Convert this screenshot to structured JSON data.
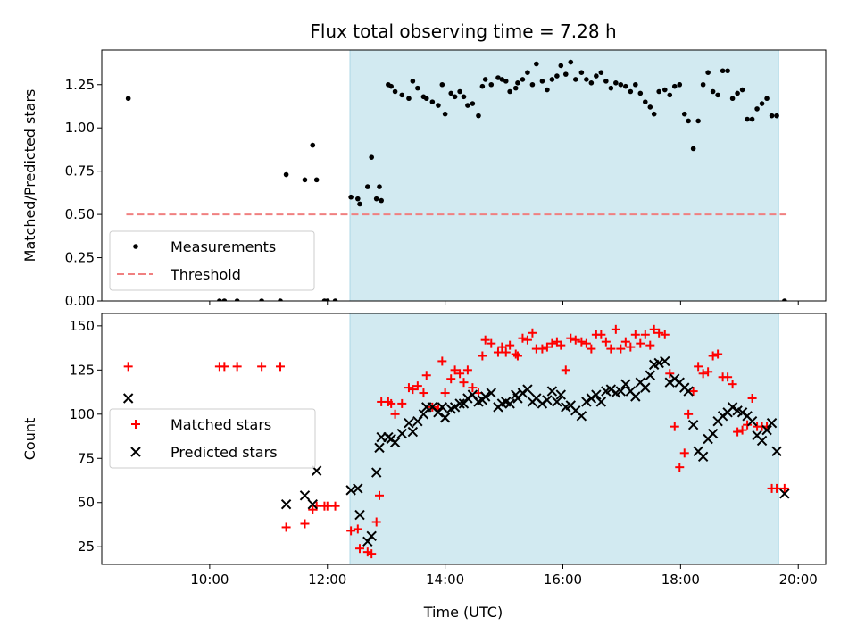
{
  "chart_data": {
    "title": "Flux total observing time = 7.28 h",
    "xlabel": "Time (UTC)",
    "x_ticks": [
      "10:00",
      "12:00",
      "14:00",
      "16:00",
      "18:00",
      "20:00"
    ],
    "observing_window": [
      "12:23",
      "19:40"
    ],
    "colors": {
      "window_fill": "#add8e6",
      "threshold": "#f08080",
      "matched": "#ff0000",
      "predicted": "#000000",
      "measurement": "#000000"
    },
    "panels": [
      {
        "type": "scatter",
        "ylabel": "Matched/Predicted stars",
        "ylim": [
          0,
          1.45
        ],
        "yticks": [
          "0.00",
          "0.25",
          "0.50",
          "0.75",
          "1.00",
          "1.25"
        ],
        "legend_position": "lower-left",
        "series": [
          {
            "name": "Measurements",
            "kind": "scatter",
            "x": [
              "08:37",
              "10:10",
              "10:15",
              "10:28",
              "10:53",
              "11:12",
              "11:18",
              "11:37",
              "11:45",
              "11:49",
              "11:57",
              "12:00",
              "12:08",
              "12:24",
              "12:31",
              "12:33",
              "12:41",
              "12:45",
              "12:50",
              "12:53",
              "12:55",
              "13:02",
              "13:05",
              "13:09",
              "13:16",
              "13:23",
              "13:27",
              "13:32",
              "13:38",
              "13:41",
              "13:47",
              "13:53",
              "13:57",
              "14:00",
              "14:06",
              "14:10",
              "14:15",
              "14:19",
              "14:23",
              "14:28",
              "14:34",
              "14:38",
              "14:41",
              "14:47",
              "14:54",
              "14:58",
              "15:02",
              "15:06",
              "15:12",
              "15:14",
              "15:19",
              "15:24",
              "15:29",
              "15:33",
              "15:39",
              "15:44",
              "15:49",
              "15:54",
              "15:58",
              "16:03",
              "16:08",
              "16:13",
              "16:19",
              "16:24",
              "16:29",
              "16:34",
              "16:39",
              "16:44",
              "16:49",
              "16:54",
              "16:59",
              "17:04",
              "17:09",
              "17:14",
              "17:19",
              "17:24",
              "17:29",
              "17:33",
              "17:38",
              "17:44",
              "17:49",
              "17:54",
              "17:59",
              "18:04",
              "18:08",
              "18:13",
              "18:18",
              "18:23",
              "18:28",
              "18:33",
              "18:38",
              "18:43",
              "18:48",
              "18:53",
              "18:58",
              "19:03",
              "19:08",
              "19:13",
              "19:18",
              "19:23",
              "19:28",
              "19:33",
              "19:38",
              "19:46"
            ],
            "y": [
              1.17,
              0.0,
              0.0,
              0.0,
              0.0,
              0.0,
              0.73,
              0.7,
              0.9,
              0.7,
              0.0,
              0.0,
              0.0,
              0.6,
              0.59,
              0.56,
              0.66,
              0.83,
              0.59,
              0.66,
              0.58,
              1.25,
              1.24,
              1.21,
              1.19,
              1.17,
              1.27,
              1.23,
              1.18,
              1.17,
              1.15,
              1.13,
              1.25,
              1.08,
              1.2,
              1.18,
              1.21,
              1.18,
              1.13,
              1.14,
              1.07,
              1.24,
              1.28,
              1.25,
              1.29,
              1.28,
              1.27,
              1.21,
              1.23,
              1.26,
              1.28,
              1.32,
              1.25,
              1.37,
              1.27,
              1.22,
              1.28,
              1.3,
              1.36,
              1.31,
              1.38,
              1.28,
              1.32,
              1.28,
              1.26,
              1.3,
              1.32,
              1.27,
              1.23,
              1.26,
              1.25,
              1.24,
              1.21,
              1.25,
              1.2,
              1.15,
              1.12,
              1.08,
              1.21,
              1.22,
              1.19,
              1.24,
              1.25,
              1.08,
              1.04,
              0.88,
              1.04,
              1.25,
              1.32,
              1.21,
              1.19,
              1.33,
              1.33,
              1.17,
              1.2,
              1.22,
              1.05,
              1.05,
              1.11,
              1.14,
              1.17,
              1.07,
              1.07,
              0.0
            ],
            "color": "#000000"
          },
          {
            "name": "Threshold",
            "kind": "line",
            "x": [
              "08:35",
              "19:48"
            ],
            "y": [
              0.5,
              0.5
            ],
            "color": "#f08080"
          }
        ]
      },
      {
        "type": "scatter",
        "ylabel": "Count",
        "ylim": [
          15,
          157
        ],
        "yticks": [
          "25",
          "50",
          "75",
          "100",
          "125",
          "150"
        ],
        "legend_position": "center-left",
        "series": [
          {
            "name": "Matched stars",
            "kind": "scatter",
            "marker": "+",
            "color": "#ff0000",
            "x": [
              "08:37",
              "10:10",
              "10:15",
              "10:28",
              "10:53",
              "11:12",
              "11:18",
              "11:37",
              "11:45",
              "11:49",
              "11:57",
              "12:00",
              "12:08",
              "12:24",
              "12:31",
              "12:33",
              "12:41",
              "12:45",
              "12:50",
              "12:53",
              "12:55",
              "13:02",
              "13:05",
              "13:09",
              "13:16",
              "13:23",
              "13:27",
              "13:32",
              "13:38",
              "13:41",
              "13:47",
              "13:53",
              "13:57",
              "14:00",
              "14:06",
              "14:10",
              "14:15",
              "14:19",
              "14:23",
              "14:28",
              "14:34",
              "14:38",
              "14:41",
              "14:47",
              "14:54",
              "14:58",
              "15:02",
              "15:06",
              "15:12",
              "15:14",
              "15:19",
              "15:24",
              "15:29",
              "15:33",
              "15:39",
              "15:44",
              "15:49",
              "15:54",
              "15:58",
              "16:03",
              "16:08",
              "16:13",
              "16:19",
              "16:24",
              "16:29",
              "16:34",
              "16:39",
              "16:44",
              "16:49",
              "16:54",
              "16:59",
              "17:04",
              "17:09",
              "17:14",
              "17:19",
              "17:24",
              "17:29",
              "17:33",
              "17:38",
              "17:44",
              "17:49",
              "17:54",
              "17:59",
              "18:04",
              "18:08",
              "18:13",
              "18:18",
              "18:23",
              "18:28",
              "18:33",
              "18:38",
              "18:43",
              "18:48",
              "18:53",
              "18:58",
              "19:03",
              "19:08",
              "19:13",
              "19:18",
              "19:23",
              "19:28",
              "19:33",
              "19:38",
              "19:46"
            ],
            "y": [
              127,
              127,
              127,
              127,
              127,
              127,
              36,
              38,
              46,
              48,
              48,
              48,
              48,
              34,
              35,
              24,
              22,
              21,
              39,
              54,
              107,
              107,
              106,
              100,
              106,
              115,
              114,
              116,
              112,
              122,
              104,
              103,
              130,
              112,
              120,
              125,
              123,
              118,
              125,
              115,
              112,
              133,
              142,
              140,
              135,
              138,
              135,
              139,
              134,
              133,
              143,
              142,
              146,
              137,
              137,
              138,
              140,
              141,
              139,
              125,
              143,
              142,
              141,
              140,
              137,
              145,
              145,
              141,
              137,
              148,
              137,
              141,
              138,
              145,
              140,
              145,
              139,
              148,
              146,
              145,
              123,
              93,
              70,
              78,
              100,
              113,
              127,
              123,
              124,
              133,
              134,
              121,
              121,
              117,
              90,
              91,
              94,
              109,
              93,
              93,
              93,
              58,
              58,
              58
            ],
            "note_value": ""
          },
          {
            "name": "Predicted stars",
            "kind": "scatter",
            "marker": "x",
            "color": "#000000",
            "x": [
              "08:37",
              "11:18",
              "11:37",
              "11:45",
              "11:49",
              "12:24",
              "12:31",
              "12:33",
              "12:41",
              "12:45",
              "12:50",
              "12:53",
              "12:55",
              "13:02",
              "13:05",
              "13:09",
              "13:16",
              "13:23",
              "13:27",
              "13:32",
              "13:38",
              "13:41",
              "13:47",
              "13:53",
              "13:57",
              "14:00",
              "14:06",
              "14:10",
              "14:15",
              "14:19",
              "14:23",
              "14:28",
              "14:34",
              "14:38",
              "14:41",
              "14:47",
              "14:54",
              "14:58",
              "15:02",
              "15:06",
              "15:12",
              "15:14",
              "15:19",
              "15:24",
              "15:29",
              "15:33",
              "15:39",
              "15:44",
              "15:49",
              "15:54",
              "15:58",
              "16:03",
              "16:08",
              "16:13",
              "16:19",
              "16:24",
              "16:29",
              "16:34",
              "16:39",
              "16:44",
              "16:49",
              "16:54",
              "16:59",
              "17:04",
              "17:09",
              "17:14",
              "17:19",
              "17:24",
              "17:29",
              "17:33",
              "17:38",
              "17:44",
              "17:49",
              "17:54",
              "17:59",
              "18:04",
              "18:08",
              "18:13",
              "18:18",
              "18:23",
              "18:28",
              "18:33",
              "18:38",
              "18:43",
              "18:48",
              "18:53",
              "18:58",
              "19:03",
              "19:08",
              "19:13",
              "19:18",
              "19:23",
              "19:28",
              "19:33",
              "19:38",
              "19:46"
            ],
            "y": [
              109,
              49,
              54,
              49,
              68,
              57,
              58,
              43,
              28,
              31,
              67,
              81,
              87,
              87,
              86,
              84,
              89,
              95,
              90,
              96,
              100,
              104,
              104,
              101,
              104,
              98,
              103,
              104,
              106,
              106,
              109,
              111,
              107,
              108,
              110,
              112,
              104,
              106,
              107,
              106,
              111,
              109,
              112,
              114,
              107,
              109,
              106,
              108,
              113,
              107,
              111,
              104,
              105,
              102,
              99,
              107,
              109,
              111,
              107,
              113,
              114,
              112,
              113,
              117,
              113,
              110,
              118,
              115,
              122,
              128,
              129,
              130,
              118,
              120,
              118,
              115,
              113,
              94,
              79,
              76,
              86,
              89,
              96,
              99,
              101,
              104,
              102,
              101,
              99,
              96,
              88,
              85,
              91,
              95,
              79,
              55
            ]
          }
        ]
      }
    ]
  }
}
